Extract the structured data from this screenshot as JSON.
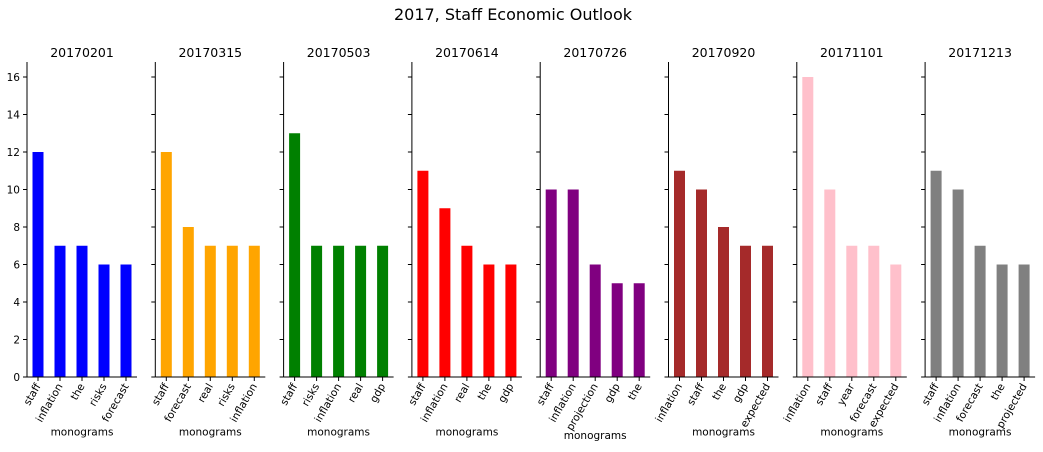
{
  "title": "2017, Staff Economic Outlook",
  "chart_data": [
    {
      "type": "bar",
      "title": "20170201",
      "xlabel": "monograms",
      "categories": [
        "staff",
        "inflation",
        "the",
        "risks",
        "forecast"
      ],
      "values": [
        12,
        7,
        7,
        6,
        6
      ],
      "color": "#0000ff",
      "ylim": [
        0,
        16.8
      ],
      "yticks": [
        0,
        2,
        4,
        6,
        8,
        10,
        12,
        14,
        16
      ]
    },
    {
      "type": "bar",
      "title": "20170315",
      "xlabel": "monograms",
      "categories": [
        "staff",
        "forecast",
        "real",
        "risks",
        "inflation"
      ],
      "values": [
        12,
        8,
        7,
        7,
        7
      ],
      "color": "#ffa500",
      "ylim": [
        0,
        16.8
      ],
      "yticks": [
        0,
        2,
        4,
        6,
        8,
        10,
        12,
        14,
        16
      ]
    },
    {
      "type": "bar",
      "title": "20170503",
      "xlabel": "monograms",
      "categories": [
        "staff",
        "risks",
        "inflation",
        "real",
        "gdp"
      ],
      "values": [
        13,
        7,
        7,
        7,
        7
      ],
      "color": "#008000",
      "ylim": [
        0,
        16.8
      ],
      "yticks": [
        0,
        2,
        4,
        6,
        8,
        10,
        12,
        14,
        16
      ]
    },
    {
      "type": "bar",
      "title": "20170614",
      "xlabel": "monograms",
      "categories": [
        "staff",
        "inflation",
        "real",
        "the",
        "gdp"
      ],
      "values": [
        11,
        9,
        7,
        6,
        6
      ],
      "color": "#ff0000",
      "ylim": [
        0,
        16.8
      ],
      "yticks": [
        0,
        2,
        4,
        6,
        8,
        10,
        12,
        14,
        16
      ]
    },
    {
      "type": "bar",
      "title": "20170726",
      "xlabel": "monograms",
      "categories": [
        "staff",
        "inflation",
        "projection",
        "gdp",
        "the"
      ],
      "values": [
        10,
        10,
        6,
        5,
        5
      ],
      "color": "#800080",
      "ylim": [
        0,
        16.8
      ],
      "yticks": [
        0,
        2,
        4,
        6,
        8,
        10,
        12,
        14,
        16
      ]
    },
    {
      "type": "bar",
      "title": "20170920",
      "xlabel": "monograms",
      "categories": [
        "inflation",
        "staff",
        "the",
        "gdp",
        "expected"
      ],
      "values": [
        11,
        10,
        8,
        7,
        7
      ],
      "color": "#a52a2a",
      "ylim": [
        0,
        16.8
      ],
      "yticks": [
        0,
        2,
        4,
        6,
        8,
        10,
        12,
        14,
        16
      ]
    },
    {
      "type": "bar",
      "title": "20171101",
      "xlabel": "monograms",
      "categories": [
        "inflation",
        "staff",
        "year",
        "forecast",
        "expected"
      ],
      "values": [
        16,
        10,
        7,
        7,
        6
      ],
      "color": "#ffc0cb",
      "ylim": [
        0,
        16.8
      ],
      "yticks": [
        0,
        2,
        4,
        6,
        8,
        10,
        12,
        14,
        16
      ]
    },
    {
      "type": "bar",
      "title": "20171213",
      "xlabel": "monograms",
      "categories": [
        "staff",
        "inflation",
        "forecast",
        "the",
        "projected"
      ],
      "values": [
        11,
        10,
        7,
        6,
        6
      ],
      "color": "#808080",
      "ylim": [
        0,
        16.8
      ],
      "yticks": [
        0,
        2,
        4,
        6,
        8,
        10,
        12,
        14,
        16
      ]
    }
  ]
}
